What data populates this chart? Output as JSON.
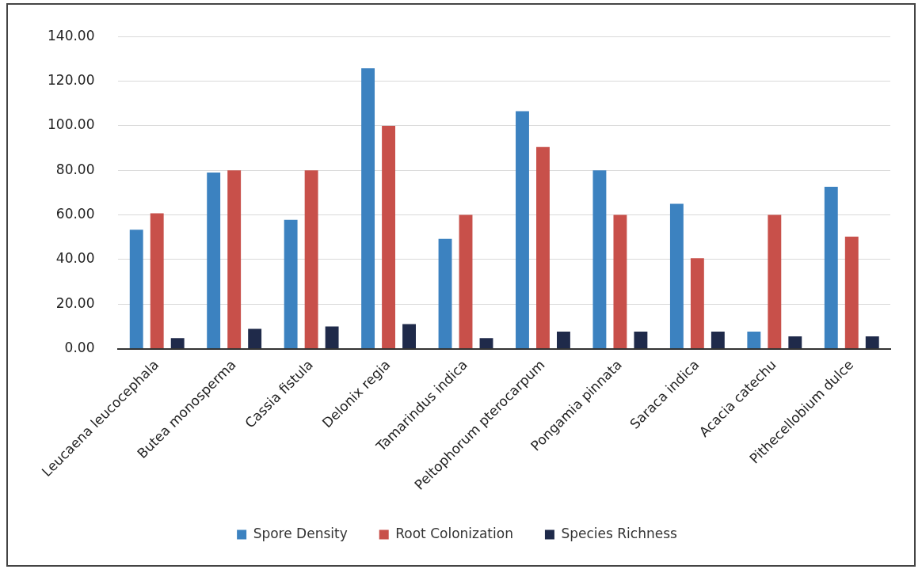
{
  "chart_data": {
    "type": "bar",
    "categories": [
      "Leucaena leucocephala",
      "Butea monosperma",
      "Cassia fistula",
      "Delonix regia",
      "Tamarindus indica",
      "Peltophorum pterocarpum",
      "Pongamia pinnata",
      "Saraca indica",
      "Acacia catechu",
      "Pithecellobium dulce"
    ],
    "series": [
      {
        "name": "Spore Density",
        "color": "#3c82c0",
        "values": [
          53.4,
          79,
          57.8,
          125.8,
          49.3,
          106.5,
          80,
          65,
          7.7,
          72.6
        ]
      },
      {
        "name": "Root Colonization",
        "color": "#c8504a",
        "values": [
          60.7,
          80,
          80,
          100,
          60,
          90.5,
          60,
          40.6,
          60,
          50.3
        ]
      },
      {
        "name": "Species Richness",
        "color": "#1f2a4a",
        "values": [
          4.7,
          8.9,
          10,
          11,
          4.7,
          7.7,
          7.7,
          7.7,
          5.5,
          5.5
        ]
      }
    ],
    "ylim": [
      0,
      140
    ],
    "yticks": [
      {
        "value": 0,
        "label": "0.00"
      },
      {
        "value": 20,
        "label": "20.00"
      },
      {
        "value": 40,
        "label": "40.00"
      },
      {
        "value": 60,
        "label": "60.00"
      },
      {
        "value": 80,
        "label": "80.00"
      },
      {
        "value": 100,
        "label": "100.00"
      },
      {
        "value": 120,
        "label": "120.00"
      },
      {
        "value": 140,
        "label": "140.00"
      }
    ],
    "grid": "y",
    "legend": "bottom"
  }
}
